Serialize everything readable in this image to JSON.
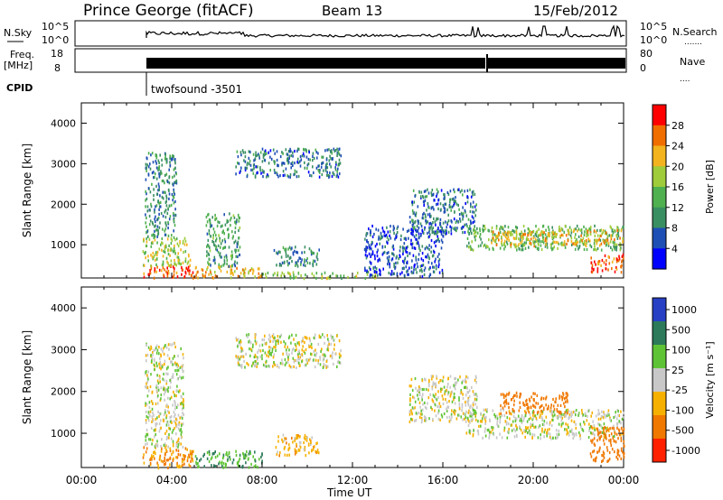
{
  "header": {
    "station": "Prince George (fitACF)",
    "beam": "Beam 13",
    "date": "15/Feb/2012"
  },
  "top_panels": {
    "nsky_label": "N.Sky",
    "nsky_ticks": [
      "10^5",
      "10^0"
    ],
    "nsearch_label": "N.Search",
    "nsearch_ticks": [
      "10^5",
      "10^0"
    ],
    "freq_label_1": "Freq.",
    "freq_label_2": "[MHz]",
    "freq_ticks": [
      "18",
      "8"
    ],
    "nave_label": "Nave",
    "nave_ticks": [
      "80",
      "0"
    ],
    "cpid_label": "CPID",
    "cpid_value": "twofsound -3501"
  },
  "chart_data": [
    {
      "type": "heatmap",
      "name": "power",
      "ylabel": "Slant Range [km]",
      "xlabel": "",
      "ylim": [
        180,
        4500
      ],
      "xlim": [
        0,
        24
      ],
      "yticks": [
        "1000",
        "2000",
        "3000",
        "4000"
      ],
      "xticks": [
        "00:00",
        "04:00",
        "08:00",
        "12:00",
        "16:00",
        "20:00",
        "00:00"
      ],
      "colorbar_label": "Power [dB]",
      "colorbar_ticks": [
        "4",
        "8",
        "12",
        "16",
        "20",
        "24",
        "28"
      ],
      "colors": [
        "#0000ff",
        "#1e4fb5",
        "#3a8f62",
        "#4fb04f",
        "#9ecc3a",
        "#f2b31e",
        "#f06e00",
        "#ff0000"
      ],
      "regions": [
        {
          "t": [
            2.7,
            5.0
          ],
          "r": [
            200,
            500
          ],
          "v": 28
        },
        {
          "t": [
            2.7,
            4.8
          ],
          "r": [
            500,
            1200
          ],
          "v": 18
        },
        {
          "t": [
            2.8,
            4.2
          ],
          "r": [
            1200,
            3300
          ],
          "v": 10
        },
        {
          "t": [
            5.0,
            8.0
          ],
          "r": [
            200,
            500
          ],
          "v": 22
        },
        {
          "t": [
            5.5,
            7.0
          ],
          "r": [
            500,
            1800
          ],
          "v": 12
        },
        {
          "t": [
            6.8,
            11.5
          ],
          "r": [
            2700,
            3400
          ],
          "v": 8
        },
        {
          "t": [
            8.5,
            10.5
          ],
          "r": [
            500,
            1000
          ],
          "v": 10
        },
        {
          "t": [
            8.0,
            13.0
          ],
          "r": [
            200,
            350
          ],
          "v": 16
        },
        {
          "t": [
            12.5,
            16.0
          ],
          "r": [
            250,
            1500
          ],
          "v": 6
        },
        {
          "t": [
            14.5,
            17.5
          ],
          "r": [
            1300,
            2400
          ],
          "v": 8
        },
        {
          "t": [
            17.0,
            24.0
          ],
          "r": [
            900,
            1500
          ],
          "v": 14
        },
        {
          "t": [
            18.0,
            24.0
          ],
          "r": [
            1000,
            1400
          ],
          "v": 22
        },
        {
          "t": [
            22.5,
            24.0
          ],
          "r": [
            350,
            800
          ],
          "v": 28
        }
      ]
    },
    {
      "type": "heatmap",
      "name": "velocity",
      "ylabel": "Slant Range [km]",
      "xlabel": "Time UT",
      "ylim": [
        180,
        4500
      ],
      "xlim": [
        0,
        24
      ],
      "yticks": [
        "1000",
        "2000",
        "3000",
        "4000"
      ],
      "xticks": [
        "00:00",
        "04:00",
        "08:00",
        "12:00",
        "16:00",
        "20:00",
        "00:00"
      ],
      "colorbar_label": "Velocity [m s⁻¹]",
      "colorbar_ticks": [
        "1000",
        "500",
        "100",
        "25",
        "-25",
        "-100",
        "-500",
        "-1000"
      ],
      "colors": [
        "#2740c4",
        "#2c7a5a",
        "#5fc435",
        "#c8c8c8",
        "#f6b100",
        "#f07800",
        "#ff2000"
      ],
      "regions": [
        {
          "t": [
            2.7,
            5.0
          ],
          "r": [
            200,
            700
          ],
          "v": -100
        },
        {
          "t": [
            2.8,
            4.5
          ],
          "r": [
            700,
            3200
          ],
          "v": 0
        },
        {
          "t": [
            5.0,
            8.0
          ],
          "r": [
            200,
            600
          ],
          "v": 100
        },
        {
          "t": [
            6.8,
            11.5
          ],
          "r": [
            2600,
            3400
          ],
          "v": 0
        },
        {
          "t": [
            8.5,
            10.5
          ],
          "r": [
            500,
            1000
          ],
          "v": -60
        },
        {
          "t": [
            14.5,
            17.5
          ],
          "r": [
            1300,
            2400
          ],
          "v": 0
        },
        {
          "t": [
            17.0,
            24.0
          ],
          "r": [
            900,
            1600
          ],
          "v": 0
        },
        {
          "t": [
            18.5,
            21.5
          ],
          "r": [
            1500,
            2000
          ],
          "v": -400
        },
        {
          "t": [
            22.5,
            24.0
          ],
          "r": [
            350,
            1200
          ],
          "v": -200
        }
      ]
    }
  ]
}
